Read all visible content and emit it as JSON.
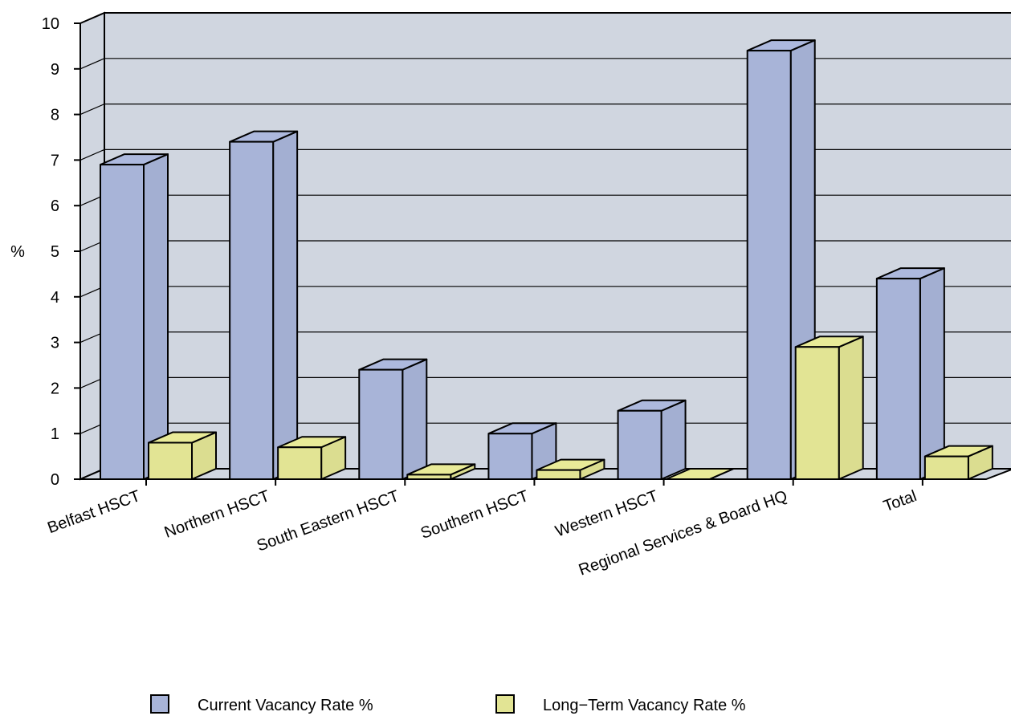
{
  "chart_data": {
    "type": "bar",
    "style": "3d",
    "title": "",
    "xlabel": "",
    "ylabel": "%",
    "ylim": [
      0,
      10
    ],
    "yticks": [
      0,
      1,
      2,
      3,
      4,
      5,
      6,
      7,
      8,
      9,
      10
    ],
    "grid": true,
    "legend_position": "bottom",
    "categories": [
      "Belfast HSCT",
      "Northern HSCT",
      "South Eastern HSCT",
      "Southern HSCT",
      "Western HSCT",
      "Regional Services & Board HQ",
      "Total"
    ],
    "series": [
      {
        "name": "Current Vacancy Rate %",
        "color": "#a8b4d8",
        "values": [
          6.9,
          7.4,
          2.4,
          1.0,
          1.5,
          9.4,
          4.4
        ]
      },
      {
        "name": "Long−Term Vacancy Rate %",
        "color": "#e2e494",
        "values": [
          0.8,
          0.7,
          0.1,
          0.2,
          0.0,
          2.9,
          0.5
        ]
      }
    ],
    "colors": {
      "wall": "#d0d6e0",
      "floor": "#d0d6e0",
      "outline": "#000000"
    }
  }
}
